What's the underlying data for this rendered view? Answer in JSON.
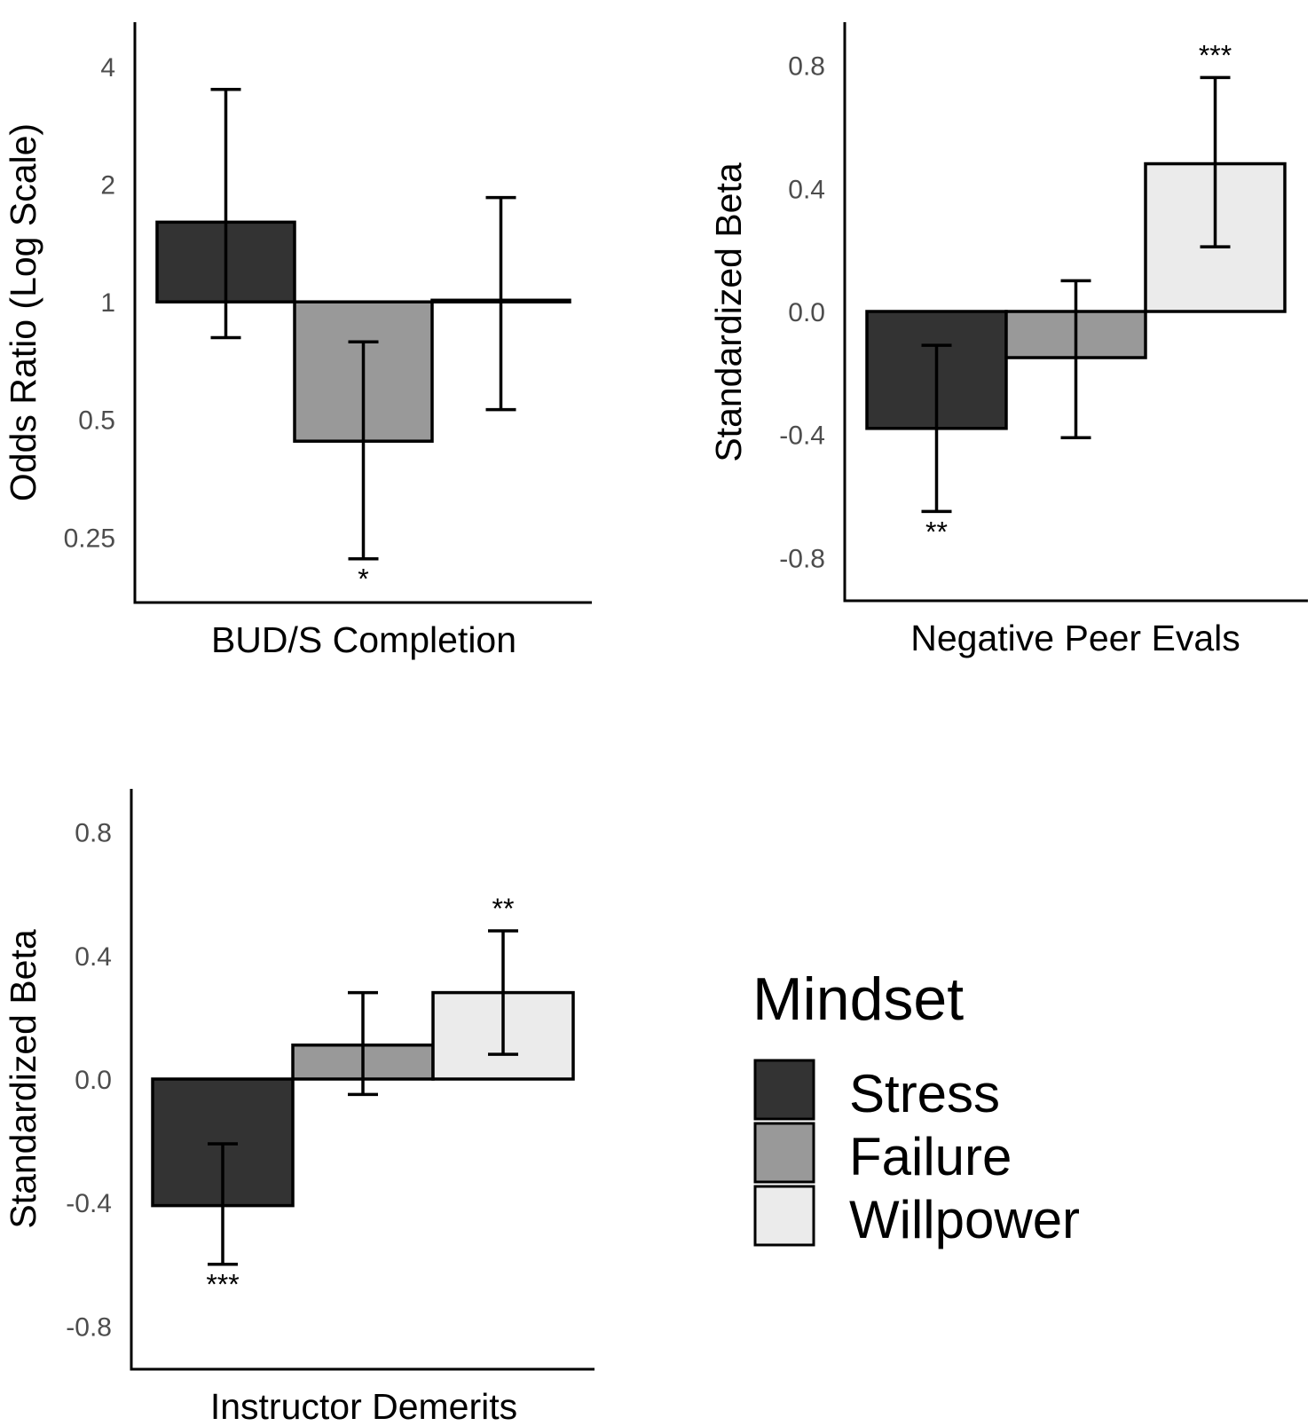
{
  "chart_data": [
    {
      "type": "bar",
      "id": "completion",
      "scale": "log2",
      "xlabel": "BUD/S Completion",
      "ylabel": "Odds Ratio (Log Scale)",
      "yticks": [
        0.25,
        0.5,
        1,
        2,
        4
      ],
      "ytick_labels": [
        "0.25",
        "0.5",
        "1",
        "2",
        "4"
      ],
      "ylim": [
        0.17,
        5.2
      ],
      "baseline": 1,
      "series": [
        {
          "name": "Stress",
          "value": 1.6,
          "ci": [
            0.81,
            3.5
          ],
          "sig": ""
        },
        {
          "name": "Failure",
          "value": 0.44,
          "ci": [
            0.22,
            0.79
          ],
          "sig": "*"
        },
        {
          "name": "Willpower",
          "value": 1.01,
          "ci": [
            0.53,
            1.85
          ],
          "sig": ""
        }
      ]
    },
    {
      "type": "bar",
      "id": "peer",
      "scale": "linear",
      "xlabel": "Negative Peer Evals",
      "ylabel": "Standardized Beta",
      "yticks": [
        -0.8,
        -0.4,
        0,
        0.4,
        0.8
      ],
      "ytick_labels": [
        "-0.8",
        "-0.4",
        "0.0",
        "0.4",
        "0.8"
      ],
      "ylim": [
        -0.94,
        0.94
      ],
      "baseline": 0,
      "series": [
        {
          "name": "Stress",
          "value": -0.38,
          "ci": [
            -0.65,
            -0.11
          ],
          "sig": "**"
        },
        {
          "name": "Failure",
          "value": -0.15,
          "ci": [
            -0.41,
            0.1
          ],
          "sig": ""
        },
        {
          "name": "Willpower",
          "value": 0.48,
          "ci": [
            0.21,
            0.76
          ],
          "sig": "***"
        }
      ]
    },
    {
      "type": "bar",
      "id": "demerits",
      "scale": "linear",
      "xlabel": "Instructor Demerits",
      "ylabel": "Standardized Beta",
      "yticks": [
        -0.8,
        -0.4,
        0,
        0.4,
        0.8
      ],
      "ytick_labels": [
        "-0.8",
        "-0.4",
        "0.0",
        "0.4",
        "0.8"
      ],
      "ylim": [
        -0.94,
        0.94
      ],
      "baseline": 0,
      "series": [
        {
          "name": "Stress",
          "value": -0.41,
          "ci": [
            -0.6,
            -0.21
          ],
          "sig": "***"
        },
        {
          "name": "Failure",
          "value": 0.11,
          "ci": [
            -0.05,
            0.28
          ],
          "sig": ""
        },
        {
          "name": "Willpower",
          "value": 0.28,
          "ci": [
            0.08,
            0.48
          ],
          "sig": "**"
        }
      ]
    }
  ],
  "legend": {
    "title": "Mindset",
    "items": [
      {
        "name": "Stress",
        "color": "#333333"
      },
      {
        "name": "Failure",
        "color": "#999999"
      },
      {
        "name": "Willpower",
        "color": "#ebebeb"
      }
    ]
  }
}
